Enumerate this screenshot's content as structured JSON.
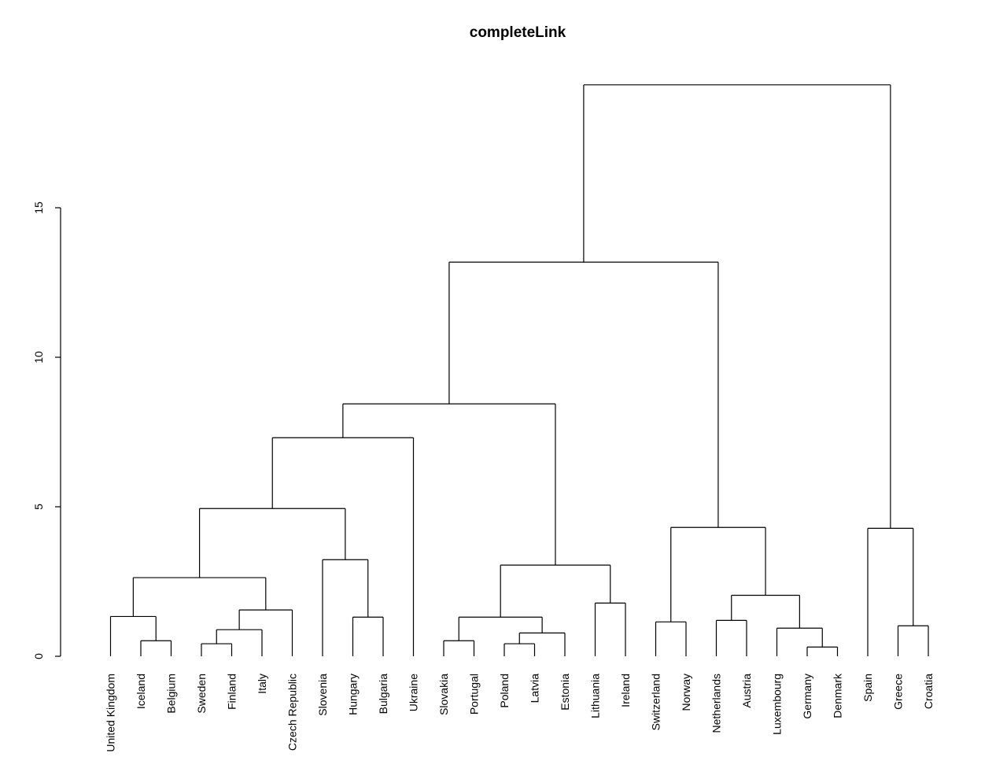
{
  "chart_data": {
    "type": "dendrogram",
    "title": "completeLink",
    "xlabel": "",
    "ylabel": "",
    "ylim": [
      0,
      15
    ],
    "yticks": [
      0,
      5,
      10,
      15
    ],
    "leaves": [
      "United Kingdom",
      "Iceland",
      "Belgium",
      "Sweden",
      "Finland",
      "Italy",
      "Czech Republic",
      "Slovenia",
      "Hungary",
      "Bulgaria",
      "Ukraine",
      "Slovakia",
      "Portugal",
      "Poland",
      "Latvia",
      "Estonia",
      "Lithuania",
      "Ireland",
      "Switzerland",
      "Norway",
      "Netherlands",
      "Austria",
      "Luxembourg",
      "Germany",
      "Denmark",
      "Spain",
      "Greece",
      "Croatia"
    ],
    "merges": [
      {
        "a": "Iceland",
        "b": "Belgium",
        "height": 0.52
      },
      {
        "a": "United Kingdom",
        "b": [
          "Iceland",
          "Belgium"
        ],
        "height": 1.33
      },
      {
        "a": "Sweden",
        "b": "Finland",
        "height": 0.42
      },
      {
        "a": [
          "Sweden",
          "Finland"
        ],
        "b": "Italy",
        "height": 0.89
      },
      {
        "a": [
          "Sweden",
          "Finland",
          "Italy"
        ],
        "b": "Czech Republic",
        "height": 1.55
      },
      {
        "a": [
          "United Kingdom",
          "Iceland",
          "Belgium"
        ],
        "b": [
          "Sweden",
          "Finland",
          "Italy",
          "Czech Republic"
        ],
        "height": 2.63
      },
      {
        "a": "Hungary",
        "b": "Bulgaria",
        "height": 1.31
      },
      {
        "a": "Slovenia",
        "b": [
          "Hungary",
          "Bulgaria"
        ],
        "height": 3.23
      },
      {
        "a": [
          "United Kingdom",
          "Iceland",
          "Belgium",
          "Sweden",
          "Finland",
          "Italy",
          "Czech Republic"
        ],
        "b": [
          "Slovenia",
          "Hungary",
          "Bulgaria"
        ],
        "height": 4.94
      },
      {
        "a": [
          "United Kingdom",
          "Iceland",
          "Belgium",
          "Sweden",
          "Finland",
          "Italy",
          "Czech Republic",
          "Slovenia",
          "Hungary",
          "Bulgaria"
        ],
        "b": "Ukraine",
        "height": 7.31
      },
      {
        "a": "Slovakia",
        "b": "Portugal",
        "height": 0.52
      },
      {
        "a": "Poland",
        "b": "Latvia",
        "height": 0.42
      },
      {
        "a": [
          "Poland",
          "Latvia"
        ],
        "b": "Estonia",
        "height": 0.78
      },
      {
        "a": [
          "Slovakia",
          "Portugal"
        ],
        "b": [
          "Poland",
          "Latvia",
          "Estonia"
        ],
        "height": 1.31
      },
      {
        "a": "Lithuania",
        "b": "Ireland",
        "height": 1.78
      },
      {
        "a": [
          "Slovakia",
          "Portugal",
          "Poland",
          "Latvia",
          "Estonia"
        ],
        "b": [
          "Lithuania",
          "Ireland"
        ],
        "height": 3.05
      },
      {
        "a": [
          "United Kingdom",
          "Iceland",
          "Belgium",
          "Sweden",
          "Finland",
          "Italy",
          "Czech Republic",
          "Slovenia",
          "Hungary",
          "Bulgaria",
          "Ukraine"
        ],
        "b": [
          "Slovakia",
          "Portugal",
          "Poland",
          "Latvia",
          "Estonia",
          "Lithuania",
          "Ireland"
        ],
        "height": 8.44
      },
      {
        "a": "Switzerland",
        "b": "Norway",
        "height": 1.15
      },
      {
        "a": "Netherlands",
        "b": "Austria",
        "height": 1.2
      },
      {
        "a": "Germany",
        "b": "Denmark",
        "height": 0.31
      },
      {
        "a": "Luxembourg",
        "b": [
          "Germany",
          "Denmark"
        ],
        "height": 0.94
      },
      {
        "a": [
          "Netherlands",
          "Austria"
        ],
        "b": [
          "Luxembourg",
          "Germany",
          "Denmark"
        ],
        "height": 2.04
      },
      {
        "a": [
          "Switzerland",
          "Norway"
        ],
        "b": [
          "Netherlands",
          "Austria",
          "Luxembourg",
          "Germany",
          "Denmark"
        ],
        "height": 4.31
      },
      {
        "a": [
          "United Kingdom",
          "Iceland",
          "Belgium",
          "Sweden",
          "Finland",
          "Italy",
          "Czech Republic",
          "Slovenia",
          "Hungary",
          "Bulgaria",
          "Ukraine",
          "Slovakia",
          "Portugal",
          "Poland",
          "Latvia",
          "Estonia",
          "Lithuania",
          "Ireland"
        ],
        "b": [
          "Switzerland",
          "Norway",
          "Netherlands",
          "Austria",
          "Luxembourg",
          "Germany",
          "Denmark"
        ],
        "height": 13.18
      },
      {
        "a": "Greece",
        "b": "Croatia",
        "height": 1.02
      },
      {
        "a": "Spain",
        "b": [
          "Greece",
          "Croatia"
        ],
        "height": 4.28
      },
      {
        "a": [
          "United Kingdom",
          "Iceland",
          "Belgium",
          "Sweden",
          "Finland",
          "Italy",
          "Czech Republic",
          "Slovenia",
          "Hungary",
          "Bulgaria",
          "Ukraine",
          "Slovakia",
          "Portugal",
          "Poland",
          "Latvia",
          "Estonia",
          "Lithuania",
          "Ireland",
          "Switzerland",
          "Norway",
          "Netherlands",
          "Austria",
          "Luxembourg",
          "Germany",
          "Denmark"
        ],
        "b": [
          "Spain",
          "Greece",
          "Croatia"
        ],
        "height": 19.11
      }
    ]
  }
}
